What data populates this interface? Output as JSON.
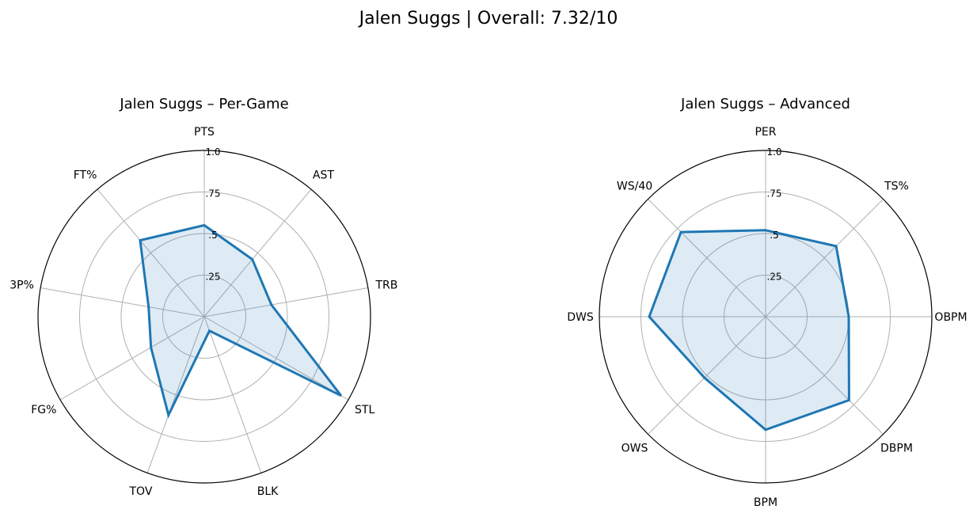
{
  "figure": {
    "title": "Jalen Suggs | Overall: 7.32/10"
  },
  "chart_data": [
    {
      "type": "radar",
      "title": "Jalen Suggs – Per-Game",
      "categories": [
        "PTS",
        "AST",
        "TRB",
        "STL",
        "BLK",
        "TOV",
        "FG%",
        "3P%",
        "FT%"
      ],
      "values": [
        0.55,
        0.45,
        0.41,
        0.95,
        0.09,
        0.63,
        0.37,
        0.34,
        0.6
      ],
      "rlim": [
        0,
        1.0
      ],
      "rticks": [
        0.25,
        0.5,
        0.75,
        1.0
      ],
      "rtick_labels": [
        ".25",
        ".5",
        ".75",
        "1.0"
      ],
      "grid": true,
      "colors": {
        "line": "#1f77b4",
        "fill": "#1f77b4"
      }
    },
    {
      "type": "radar",
      "title": "Jalen Suggs – Advanced",
      "categories": [
        "PER",
        "TS%",
        "OBPM",
        "DBPM",
        "BPM",
        "OWS",
        "DWS",
        "WS/40"
      ],
      "values": [
        0.52,
        0.6,
        0.5,
        0.71,
        0.68,
        0.52,
        0.7,
        0.72
      ],
      "rlim": [
        0,
        1.0
      ],
      "rticks": [
        0.25,
        0.5,
        0.75,
        1.0
      ],
      "rtick_labels": [
        ".25",
        ".5",
        ".75",
        "1.0"
      ],
      "grid": true,
      "colors": {
        "line": "#1f77b4",
        "fill": "#1f77b4"
      }
    }
  ]
}
